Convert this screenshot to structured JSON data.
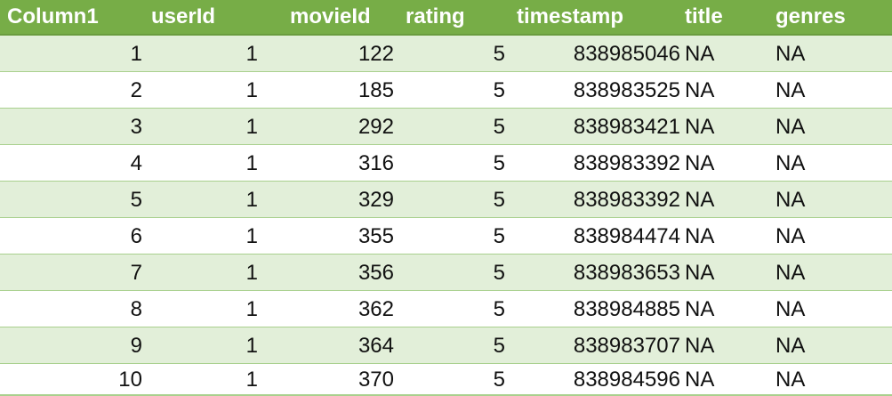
{
  "table": {
    "headers": [
      "Column1",
      "userId",
      "movieId",
      "rating",
      "timestamp",
      "title",
      "genres"
    ],
    "rows": [
      [
        "1",
        "1",
        "122",
        "5",
        "838985046",
        "NA",
        "NA"
      ],
      [
        "2",
        "1",
        "185",
        "5",
        "838983525",
        "NA",
        "NA"
      ],
      [
        "3",
        "1",
        "292",
        "5",
        "838983421",
        "NA",
        "NA"
      ],
      [
        "4",
        "1",
        "316",
        "5",
        "838983392",
        "NA",
        "NA"
      ],
      [
        "5",
        "1",
        "329",
        "5",
        "838983392",
        "NA",
        "NA"
      ],
      [
        "6",
        "1",
        "355",
        "5",
        "838984474",
        "NA",
        "NA"
      ],
      [
        "7",
        "1",
        "356",
        "5",
        "838983653",
        "NA",
        "NA"
      ],
      [
        "8",
        "1",
        "362",
        "5",
        "838984885",
        "NA",
        "NA"
      ],
      [
        "9",
        "1",
        "364",
        "5",
        "838983707",
        "NA",
        "NA"
      ],
      [
        "10",
        "1",
        "370",
        "5",
        "838984596",
        "NA",
        "NA"
      ]
    ]
  },
  "colors": {
    "header_bg": "#77ad47",
    "band": "#e2efd9",
    "line": "#a9d08e"
  }
}
